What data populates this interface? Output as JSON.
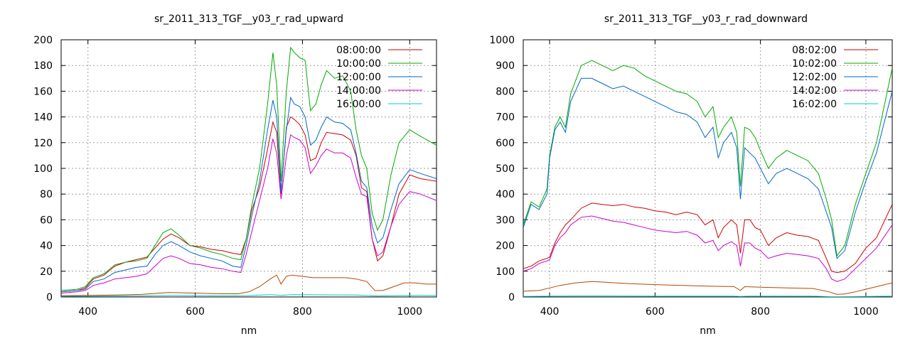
{
  "chart_data": [
    {
      "type": "line",
      "title": "sr_2011_313_TGF__y03_r_rad_upward",
      "xlabel": "nm",
      "ylabel": "",
      "xlim": [
        350,
        1050
      ],
      "ylim": [
        0,
        200
      ],
      "xticks": [
        400,
        600,
        800,
        1000
      ],
      "yticks": [
        0,
        20,
        40,
        60,
        80,
        100,
        120,
        140,
        160,
        180,
        200
      ],
      "grid": true,
      "legend_position": "top-right",
      "series": [
        {
          "name": "08:00:00",
          "color": "#cc0000",
          "x": [
            350,
            380,
            395,
            410,
            430,
            450,
            470,
            490,
            510,
            525,
            540,
            555,
            570,
            590,
            610,
            630,
            650,
            670,
            685,
            695,
            705,
            720,
            735,
            745,
            752,
            760,
            770,
            778,
            785,
            795,
            805,
            815,
            825,
            835,
            845,
            860,
            875,
            890,
            900,
            910,
            920,
            930,
            940,
            950,
            965,
            980,
            1000,
            1020,
            1050
          ],
          "y": [
            4,
            5,
            7,
            14,
            17,
            24,
            27,
            29,
            31,
            38,
            45,
            49,
            46,
            40,
            39,
            37,
            36,
            34,
            33,
            45,
            67,
            85,
            115,
            136,
            128,
            80,
            132,
            140,
            138,
            134,
            126,
            106,
            108,
            120,
            128,
            127,
            126,
            122,
            110,
            85,
            82,
            45,
            28,
            32,
            55,
            80,
            95,
            92,
            90
          ]
        },
        {
          "name": "10:00:00",
          "color": "#00aa00",
          "x": [
            350,
            380,
            395,
            410,
            430,
            450,
            470,
            490,
            510,
            525,
            540,
            555,
            570,
            590,
            610,
            630,
            650,
            670,
            685,
            695,
            705,
            720,
            735,
            745,
            752,
            760,
            770,
            778,
            785,
            795,
            805,
            815,
            825,
            835,
            845,
            860,
            875,
            890,
            900,
            910,
            920,
            930,
            940,
            950,
            965,
            980,
            1000,
            1020,
            1050
          ],
          "y": [
            5,
            6,
            8,
            15,
            18,
            25,
            27,
            28,
            30,
            40,
            50,
            53,
            48,
            40,
            38,
            35,
            33,
            30,
            29,
            45,
            70,
            100,
            150,
            190,
            165,
            90,
            160,
            194,
            190,
            186,
            184,
            145,
            150,
            165,
            176,
            170,
            172,
            160,
            130,
            110,
            100,
            65,
            52,
            60,
            95,
            120,
            130,
            125,
            118
          ]
        },
        {
          "name": "12:00:00",
          "color": "#0066cc",
          "x": [
            350,
            380,
            395,
            410,
            430,
            450,
            470,
            490,
            510,
            525,
            540,
            555,
            570,
            590,
            610,
            630,
            650,
            670,
            685,
            695,
            705,
            720,
            735,
            745,
            752,
            760,
            770,
            778,
            785,
            795,
            805,
            815,
            825,
            835,
            845,
            860,
            875,
            890,
            900,
            910,
            920,
            930,
            940,
            950,
            965,
            980,
            1000,
            1020,
            1050
          ],
          "y": [
            4,
            5,
            6,
            12,
            14,
            19,
            21,
            23,
            24,
            33,
            40,
            43,
            40,
            35,
            32,
            30,
            28,
            24,
            23,
            40,
            62,
            90,
            130,
            153,
            140,
            82,
            130,
            155,
            150,
            148,
            140,
            118,
            122,
            132,
            140,
            136,
            135,
            130,
            112,
            90,
            85,
            55,
            42,
            46,
            68,
            88,
            99,
            96,
            92
          ]
        },
        {
          "name": "14:00:00",
          "color": "#cc00cc",
          "x": [
            350,
            380,
            395,
            410,
            430,
            450,
            470,
            490,
            510,
            525,
            540,
            555,
            570,
            590,
            610,
            630,
            650,
            670,
            685,
            695,
            705,
            720,
            735,
            745,
            752,
            760,
            770,
            778,
            785,
            795,
            805,
            815,
            825,
            835,
            845,
            860,
            875,
            890,
            900,
            910,
            920,
            930,
            940,
            950,
            965,
            980,
            1000,
            1020,
            1050
          ],
          "y": [
            3,
            4,
            5,
            9,
            11,
            14,
            15,
            16,
            18,
            24,
            30,
            32,
            30,
            26,
            25,
            23,
            22,
            20,
            19,
            33,
            50,
            75,
            100,
            123,
            112,
            76,
            110,
            126,
            124,
            122,
            116,
            96,
            102,
            110,
            115,
            112,
            112,
            108,
            93,
            80,
            78,
            45,
            32,
            35,
            55,
            72,
            82,
            80,
            75
          ]
        },
        {
          "name": "16:00:00",
          "color": "#00cccc",
          "x": [
            350,
            400,
            450,
            500,
            550,
            600,
            650,
            700,
            740,
            760,
            780,
            820,
            860,
            900,
            940,
            980,
            1020,
            1050
          ],
          "y": [
            0.5,
            0.6,
            0.8,
            1.0,
            1.2,
            1.1,
            1.0,
            1.1,
            1.8,
            1.2,
            1.8,
            1.7,
            1.6,
            1.5,
            0.8,
            1.1,
            1.2,
            1.1
          ]
        },
        {
          "name": "",
          "color": "#b34700",
          "x": [
            350,
            400,
            450,
            500,
            550,
            600,
            650,
            680,
            700,
            720,
            740,
            752,
            760,
            770,
            780,
            800,
            820,
            850,
            880,
            900,
            920,
            935,
            950,
            970,
            990,
            1010,
            1030,
            1050
          ],
          "y": [
            1,
            1.2,
            1.5,
            2,
            3.5,
            3,
            2.5,
            2.5,
            4,
            8,
            14,
            17,
            10,
            16,
            17,
            16,
            15,
            15,
            15,
            14,
            12,
            5,
            5,
            8,
            11,
            11,
            10,
            10
          ]
        }
      ]
    },
    {
      "type": "line",
      "title": "sr_2011_313_TGF__y03_r_rad_downward",
      "xlabel": "nm",
      "ylabel": "",
      "xlim": [
        350,
        1050
      ],
      "ylim": [
        0,
        1000
      ],
      "xticks": [
        400,
        600,
        800,
        1000
      ],
      "yticks": [
        0,
        100,
        200,
        300,
        400,
        500,
        600,
        700,
        800,
        900,
        1000
      ],
      "grid": true,
      "legend_position": "top-right",
      "series": [
        {
          "name": "08:02:00",
          "color": "#cc0000",
          "x": [
            350,
            365,
            380,
            395,
            400,
            410,
            420,
            430,
            440,
            460,
            480,
            500,
            520,
            540,
            560,
            580,
            600,
            620,
            640,
            660,
            680,
            695,
            710,
            720,
            730,
            745,
            755,
            762,
            770,
            780,
            790,
            800,
            815,
            830,
            850,
            870,
            890,
            910,
            925,
            935,
            945,
            960,
            980,
            1000,
            1020,
            1050
          ],
          "y": [
            110,
            120,
            140,
            150,
            155,
            210,
            250,
            280,
            300,
            345,
            365,
            360,
            355,
            360,
            350,
            345,
            335,
            330,
            320,
            330,
            320,
            280,
            300,
            230,
            270,
            300,
            280,
            170,
            300,
            300,
            270,
            260,
            200,
            230,
            250,
            240,
            235,
            220,
            150,
            100,
            95,
            100,
            130,
            190,
            230,
            360
          ]
        },
        {
          "name": "10:02:00",
          "color": "#00aa00",
          "x": [
            350,
            365,
            380,
            395,
            400,
            410,
            420,
            430,
            440,
            460,
            480,
            500,
            520,
            540,
            560,
            580,
            600,
            620,
            640,
            660,
            680,
            695,
            710,
            720,
            730,
            745,
            755,
            762,
            770,
            780,
            790,
            800,
            815,
            830,
            850,
            870,
            890,
            910,
            925,
            935,
            945,
            960,
            980,
            1000,
            1020,
            1050
          ],
          "y": [
            280,
            370,
            350,
            420,
            550,
            660,
            700,
            660,
            790,
            900,
            920,
            900,
            880,
            900,
            890,
            860,
            840,
            820,
            800,
            790,
            760,
            700,
            740,
            620,
            660,
            700,
            640,
            430,
            660,
            650,
            620,
            570,
            500,
            540,
            570,
            550,
            530,
            480,
            380,
            300,
            160,
            200,
            360,
            480,
            600,
            890
          ]
        },
        {
          "name": "12:02:00",
          "color": "#0066cc",
          "x": [
            350,
            365,
            380,
            395,
            400,
            410,
            420,
            430,
            440,
            460,
            480,
            500,
            520,
            540,
            560,
            580,
            600,
            620,
            640,
            660,
            680,
            695,
            710,
            720,
            730,
            745,
            755,
            762,
            770,
            780,
            790,
            800,
            815,
            830,
            850,
            870,
            890,
            910,
            925,
            935,
            945,
            960,
            980,
            1000,
            1020,
            1050
          ],
          "y": [
            270,
            360,
            340,
            400,
            540,
            650,
            680,
            640,
            760,
            850,
            850,
            830,
            810,
            820,
            800,
            780,
            760,
            740,
            720,
            710,
            680,
            620,
            660,
            540,
            600,
            640,
            580,
            380,
            580,
            560,
            540,
            500,
            440,
            480,
            500,
            480,
            460,
            420,
            330,
            270,
            150,
            180,
            330,
            450,
            560,
            800
          ]
        },
        {
          "name": "14:02:00",
          "color": "#cc00cc",
          "x": [
            350,
            365,
            380,
            395,
            400,
            410,
            420,
            430,
            440,
            460,
            480,
            500,
            520,
            540,
            560,
            580,
            600,
            620,
            640,
            660,
            680,
            695,
            710,
            720,
            730,
            745,
            755,
            762,
            770,
            780,
            790,
            800,
            815,
            830,
            850,
            870,
            890,
            910,
            925,
            935,
            945,
            960,
            980,
            1000,
            1020,
            1050
          ],
          "y": [
            100,
            110,
            130,
            140,
            145,
            200,
            230,
            250,
            280,
            310,
            315,
            305,
            295,
            290,
            280,
            270,
            260,
            255,
            250,
            255,
            240,
            210,
            220,
            180,
            200,
            215,
            200,
            120,
            210,
            210,
            190,
            180,
            150,
            160,
            170,
            165,
            160,
            150,
            110,
            70,
            60,
            70,
            110,
            150,
            190,
            280
          ]
        },
        {
          "name": "16:02:00",
          "color": "#00cccc",
          "x": [
            350,
            400,
            450,
            500,
            550,
            600,
            650,
            700,
            750,
            762,
            780,
            850,
            900,
            935,
            950,
            1000,
            1050
          ],
          "y": [
            2,
            3,
            4,
            4,
            3.5,
            3,
            3,
            3,
            3,
            2,
            3,
            3,
            3,
            1,
            1,
            2,
            3
          ]
        },
        {
          "name": "",
          "color": "#b34700",
          "x": [
            350,
            380,
            400,
            420,
            450,
            480,
            500,
            550,
            600,
            650,
            700,
            750,
            762,
            770,
            800,
            850,
            900,
            930,
            945,
            960,
            980,
            1000,
            1020,
            1050
          ],
          "y": [
            22,
            25,
            35,
            45,
            55,
            60,
            58,
            52,
            48,
            45,
            42,
            40,
            25,
            40,
            38,
            35,
            33,
            20,
            10,
            12,
            20,
            30,
            40,
            55
          ]
        }
      ]
    }
  ]
}
